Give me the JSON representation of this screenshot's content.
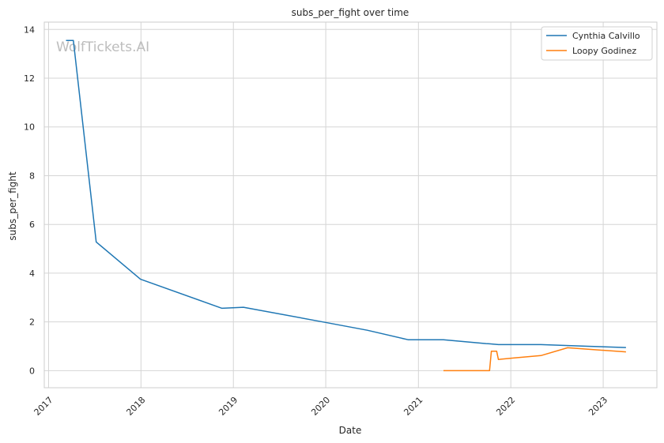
{
  "chart_data": {
    "type": "line",
    "title": "subs_per_fight over time",
    "xlabel": "Date",
    "ylabel": "subs_per_fight",
    "xlim": [
      "2016-12-15",
      "2023-08-01"
    ],
    "ylim": [
      -0.7,
      14.3
    ],
    "x_ticks": [
      "2017",
      "2018",
      "2019",
      "2020",
      "2021",
      "2022",
      "2023"
    ],
    "y_ticks": [
      0,
      2,
      4,
      6,
      8,
      10,
      12,
      14
    ],
    "grid": true,
    "legend_position": "top-right",
    "watermark": "WolfTickets.AI",
    "series": [
      {
        "name": "Cynthia Calvillo",
        "color": "#1f77b4",
        "points": [
          [
            "2017-03-11",
            13.55
          ],
          [
            "2017-04-09",
            13.55
          ],
          [
            "2017-07-08",
            5.28
          ],
          [
            "2017-12-30",
            3.75
          ],
          [
            "2018-11-17",
            2.56
          ],
          [
            "2019-02-10",
            2.6
          ],
          [
            "2019-12-31",
            1.98
          ],
          [
            "2020-06-13",
            1.66
          ],
          [
            "2020-11-21",
            1.27
          ],
          [
            "2021-04-10",
            1.27
          ],
          [
            "2021-09-25",
            1.11
          ],
          [
            "2021-10-09",
            1.1
          ],
          [
            "2021-11-13",
            1.07
          ],
          [
            "2022-04-30",
            1.07
          ],
          [
            "2022-11-01",
            1.0
          ],
          [
            "2023-04-01",
            0.95
          ]
        ]
      },
      {
        "name": "Loopy Godinez",
        "color": "#ff7f0e",
        "points": [
          [
            "2021-04-10",
            0.0
          ],
          [
            "2021-10-09",
            0.0
          ],
          [
            "2021-10-16",
            0.8
          ],
          [
            "2021-11-06",
            0.8
          ],
          [
            "2021-11-13",
            0.46
          ],
          [
            "2022-01-15",
            0.52
          ],
          [
            "2022-04-30",
            0.62
          ],
          [
            "2022-08-13",
            0.94
          ],
          [
            "2023-04-01",
            0.77
          ]
        ]
      }
    ]
  }
}
